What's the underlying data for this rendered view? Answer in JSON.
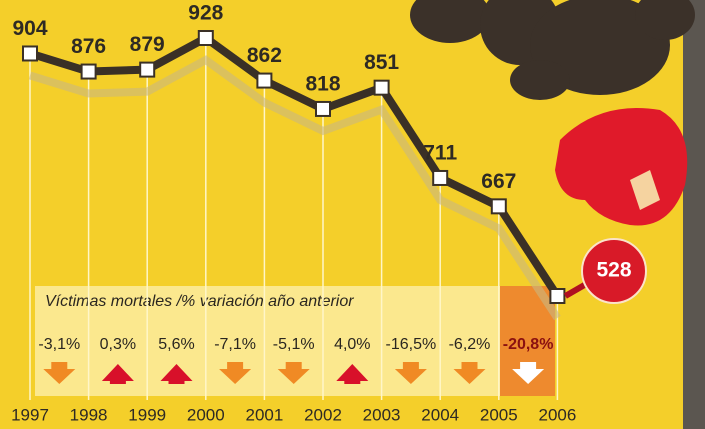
{
  "chart_data": {
    "type": "line",
    "subtitle": "Víctimas mortales /% variación año anterior",
    "categories": [
      "1997",
      "1998",
      "1999",
      "2000",
      "2001",
      "2002",
      "2003",
      "2004",
      "2005",
      "2006"
    ],
    "values": [
      904,
      876,
      879,
      928,
      862,
      818,
      851,
      711,
      667,
      528
    ],
    "color": "#3a3026",
    "changes": {
      "values": [
        -3.1,
        0.3,
        5.6,
        -7.1,
        -5.1,
        4.0,
        -16.5,
        -6.2,
        -20.8
      ],
      "value_labels": [
        "-3,1%",
        "0,3%",
        "5,6%",
        "-7,1%",
        "-5,1%",
        "4,0%",
        "-16,5%",
        "-6,2%",
        "-20,8%"
      ],
      "up_color": "#d8102a",
      "down_color": "#f08a24",
      "highlight_color": "#ee8a2e"
    }
  }
}
